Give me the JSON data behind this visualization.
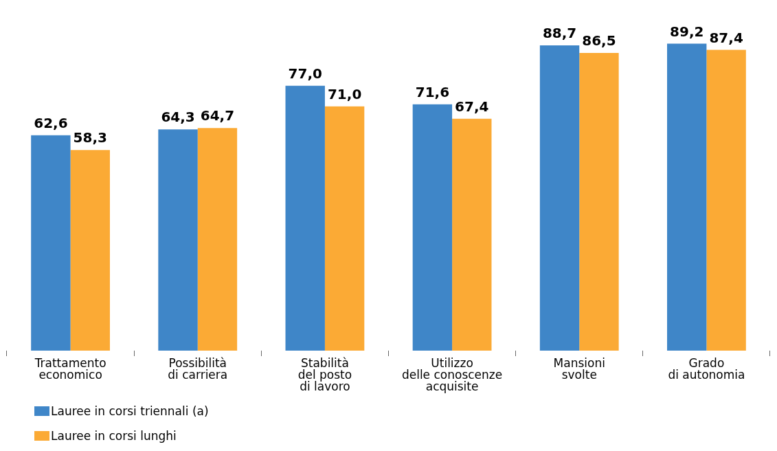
{
  "chart_data": {
    "type": "bar",
    "categories": [
      "Trattamento\neconomico",
      "Possibilità\ndi carriera",
      "Stabilità\ndel posto\ndi lavoro",
      "Utilizzo\ndelle conoscenze\nacquisite",
      "Mansioni\nsvolte",
      "Grado\ndi autonomia"
    ],
    "series": [
      {
        "name": "Lauree in corsi triennali (a)",
        "color": "#3f86c8",
        "values": [
          62.6,
          64.3,
          77.0,
          71.6,
          88.7,
          89.2
        ],
        "value_labels": [
          "62,6",
          "64,3",
          "77,0",
          "71,6",
          "88,7",
          "89,2"
        ]
      },
      {
        "name": "Lauree in corsi lunghi",
        "color": "#fbaa35",
        "values": [
          58.3,
          64.7,
          71.0,
          67.4,
          86.5,
          87.4
        ],
        "value_labels": [
          "58,3",
          "64,7",
          "71,0",
          "67,4",
          "86,5",
          "87,4"
        ]
      }
    ],
    "legend": "bottom left",
    "grid": false
  }
}
